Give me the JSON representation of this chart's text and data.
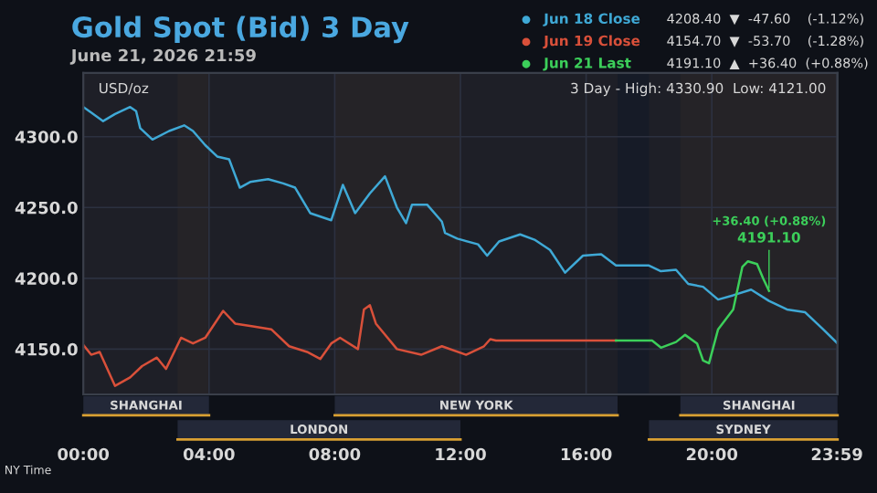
{
  "chart_data": {
    "type": "line",
    "title": "Gold Spot (Bid) 3 Day",
    "subtitle": "June 21, 2026 21:59",
    "xlim": [
      0,
      24
    ],
    "ylim": [
      4118,
      4345
    ],
    "xticks": [
      {
        "value": 0,
        "label": "00:00"
      },
      {
        "value": 4,
        "label": "04:00"
      },
      {
        "value": 8,
        "label": "08:00"
      },
      {
        "value": 12,
        "label": "12:00"
      },
      {
        "value": 16,
        "label": "16:00"
      },
      {
        "value": 20,
        "label": "20:00"
      },
      {
        "value": 23.98,
        "label": "23:59"
      }
    ],
    "yticks": [
      {
        "value": 4150,
        "label": "4150.0"
      },
      {
        "value": 4200,
        "label": "4200.0"
      },
      {
        "value": 4250,
        "label": "4250.0"
      },
      {
        "value": 4300,
        "label": "4300.0"
      }
    ],
    "grid": true,
    "legend": "top right",
    "marker": "none",
    "line_style": "solid",
    "series": [
      {
        "name": "Jun 18 Close",
        "color": "#3fa9d6",
        "x": [
          0,
          0.25,
          0.63,
          1.01,
          1.49,
          1.68,
          1.81,
          2.2,
          2.73,
          3.21,
          3.49,
          3.88,
          4.26,
          4.64,
          4.98,
          5.31,
          5.88,
          6.36,
          6.74,
          7.22,
          7.89,
          8.26,
          8.65,
          9.12,
          9.6,
          9.98,
          10.27,
          10.46,
          10.94,
          11.41,
          11.51,
          11.9,
          12.56,
          12.85,
          13.23,
          13.9,
          14.38,
          14.85,
          15.33,
          15.9,
          16.48,
          16.95,
          18.0,
          18.38,
          18.86,
          19.25,
          19.72,
          20.2,
          20.68,
          21.25,
          21.82,
          22.39,
          22.97,
          23.54,
          24.0
        ],
        "values": [
          4321,
          4317,
          4311,
          4316,
          4321,
          4318,
          4306,
          4298,
          4304,
          4308,
          4304,
          4294,
          4286,
          4284,
          4264,
          4268,
          4270,
          4267,
          4264,
          4246,
          4241,
          4266,
          4246,
          4260,
          4272,
          4250,
          4239,
          4252,
          4252,
          4240,
          4232,
          4228,
          4224,
          4216,
          4226,
          4231,
          4227,
          4220,
          4204,
          4216,
          4217,
          4209,
          4209,
          4205,
          4206,
          4196,
          4194,
          4185,
          4188,
          4192,
          4184,
          4178,
          4176,
          4164,
          4154
        ]
      },
      {
        "name": "Jun 19 Close",
        "color": "#d9503a",
        "x": [
          0,
          0.25,
          0.52,
          1.01,
          1.49,
          1.87,
          2.34,
          2.63,
          3.11,
          3.49,
          3.88,
          4.45,
          4.83,
          5.4,
          5.98,
          6.55,
          7.12,
          7.54,
          7.89,
          8.17,
          8.74,
          8.93,
          9.12,
          9.31,
          9.98,
          10.75,
          11.41,
          12.18,
          12.75,
          12.95,
          13.13,
          16.95
        ],
        "values": [
          4153,
          4146,
          4148,
          4124,
          4130,
          4138,
          4144,
          4136,
          4158,
          4154,
          4158,
          4177,
          4168,
          4166,
          4164,
          4152,
          4148,
          4143,
          4154,
          4158,
          4150,
          4178,
          4181,
          4168,
          4150,
          4146,
          4152,
          4146,
          4152,
          4157,
          4156,
          4156
        ]
      },
      {
        "name": "Jun 21 Last",
        "color": "#3ccf5a",
        "x": [
          16.95,
          18.1,
          18.38,
          18.86,
          19.15,
          19.53,
          19.72,
          19.91,
          20.2,
          20.68,
          20.97,
          21.15,
          21.44,
          21.63,
          21.82
        ],
        "values": [
          4156,
          4156,
          4151,
          4155,
          4160,
          4154,
          4142,
          4140,
          4164,
          4178,
          4208,
          4212,
          4210,
          4200,
          4191.1
        ]
      }
    ],
    "bands": [
      {
        "axis": "x",
        "from": 0,
        "to": 4,
        "label": "SHANGHAI",
        "color": "#d9a032"
      },
      {
        "axis": "x",
        "from": 3,
        "to": 12,
        "label": "LONDON",
        "color": "#d9a032"
      },
      {
        "axis": "x",
        "from": 8,
        "to": 17,
        "label": "NEW YORK",
        "color": "#d9a032"
      },
      {
        "axis": "x",
        "from": 18,
        "to": 24,
        "label": "SYDNEY",
        "color": "#d9a032"
      },
      {
        "axis": "x",
        "from": 19,
        "to": 24,
        "label": "SHANGHAI",
        "color": "#d9a032"
      }
    ],
    "annotations": [
      "4208.40  ▼  -47.60    (-1.12%)",
      "4154.70  ▼  -53.70    (-1.28%)",
      "4191.10  ▲  +36.40  (+0.88%)",
      "USD/oz",
      "3 Day - High: 4330.90  Low: 4121.00",
      "NY Time",
      "+36.40 (+0.88%)",
      {
        "text": "4191.10",
        "x": 21.82,
        "y": 4191.1
      }
    ]
  }
}
